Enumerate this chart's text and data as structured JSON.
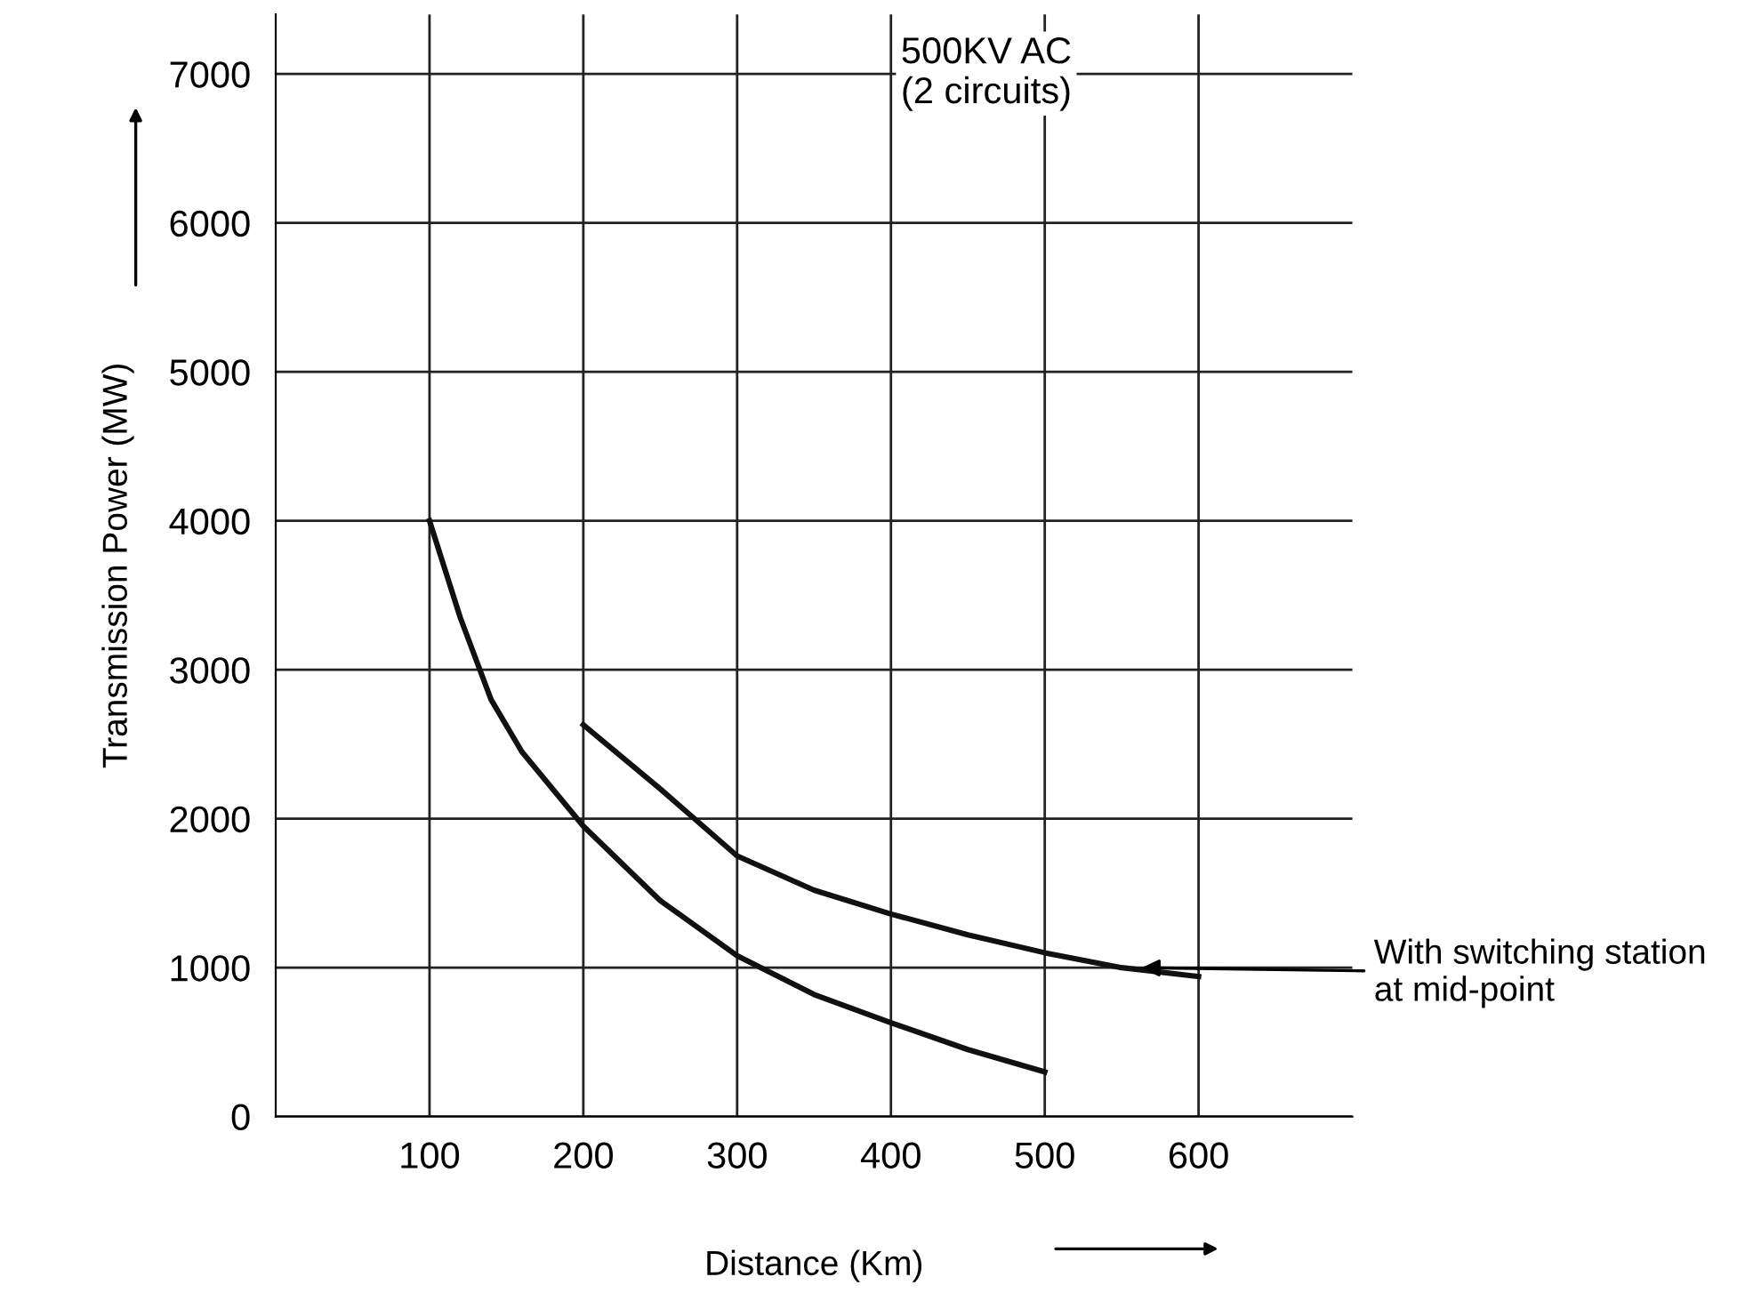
{
  "chart_data": {
    "type": "line",
    "xlabel": "Distance (Km)",
    "ylabel": "Transmission Power (MW)",
    "xlim": [
      0,
      700
    ],
    "ylim": [
      0,
      7400
    ],
    "xticks": [
      100,
      200,
      300,
      400,
      500,
      600
    ],
    "yticks": [
      0,
      1000,
      2000,
      3000,
      4000,
      5000,
      6000,
      7000
    ],
    "grid": true,
    "marker": "none",
    "line_style": "solid",
    "series": [
      {
        "color": "#111111",
        "x": [
          100,
          120,
          140,
          160,
          200,
          250,
          300,
          350,
          400,
          450,
          500
        ],
        "values": [
          4000,
          3350,
          2800,
          2450,
          1950,
          1450,
          1080,
          820,
          630,
          450,
          300
        ]
      },
      {
        "color": "#111111",
        "x": [
          200,
          250,
          300,
          350,
          400,
          450,
          500,
          550,
          600
        ],
        "values": [
          2630,
          2200,
          1750,
          1520,
          1360,
          1220,
          1100,
          1000,
          940
        ]
      }
    ],
    "annotations": [
      "500KV AC\n(2 circuits)",
      {
        "text": "With switching station\nat mid-point",
        "x": 560,
        "y": 1000
      }
    ]
  }
}
